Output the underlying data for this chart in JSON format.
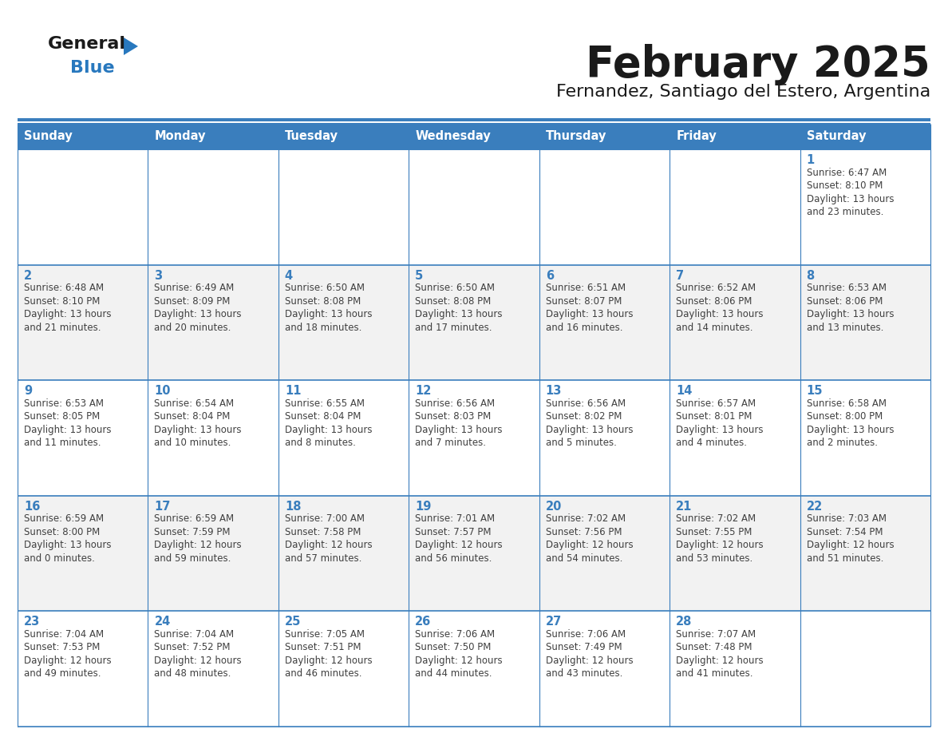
{
  "title": "February 2025",
  "subtitle": "Fernandez, Santiago del Estero, Argentina",
  "days_of_week": [
    "Sunday",
    "Monday",
    "Tuesday",
    "Wednesday",
    "Thursday",
    "Friday",
    "Saturday"
  ],
  "header_bg": "#3A7EBD",
  "header_text": "#FFFFFF",
  "cell_bg_light": "#F2F2F2",
  "cell_bg_white": "#FFFFFF",
  "border_color": "#3A7EBD",
  "day_number_color": "#3A7EBD",
  "text_color": "#404040",
  "title_color": "#1a1a1a",
  "logo_general_color": "#1a1a1a",
  "logo_blue_color": "#2878BE",
  "separator_color": "#3A7EBD",
  "calendar_data": [
    {
      "day": 1,
      "week": 0,
      "dow": 6,
      "sunrise": "6:47 AM",
      "sunset": "8:10 PM",
      "daylight_hours": 13,
      "daylight_minutes": 23
    },
    {
      "day": 2,
      "week": 1,
      "dow": 0,
      "sunrise": "6:48 AM",
      "sunset": "8:10 PM",
      "daylight_hours": 13,
      "daylight_minutes": 21
    },
    {
      "day": 3,
      "week": 1,
      "dow": 1,
      "sunrise": "6:49 AM",
      "sunset": "8:09 PM",
      "daylight_hours": 13,
      "daylight_minutes": 20
    },
    {
      "day": 4,
      "week": 1,
      "dow": 2,
      "sunrise": "6:50 AM",
      "sunset": "8:08 PM",
      "daylight_hours": 13,
      "daylight_minutes": 18
    },
    {
      "day": 5,
      "week": 1,
      "dow": 3,
      "sunrise": "6:50 AM",
      "sunset": "8:08 PM",
      "daylight_hours": 13,
      "daylight_minutes": 17
    },
    {
      "day": 6,
      "week": 1,
      "dow": 4,
      "sunrise": "6:51 AM",
      "sunset": "8:07 PM",
      "daylight_hours": 13,
      "daylight_minutes": 16
    },
    {
      "day": 7,
      "week": 1,
      "dow": 5,
      "sunrise": "6:52 AM",
      "sunset": "8:06 PM",
      "daylight_hours": 13,
      "daylight_minutes": 14
    },
    {
      "day": 8,
      "week": 1,
      "dow": 6,
      "sunrise": "6:53 AM",
      "sunset": "8:06 PM",
      "daylight_hours": 13,
      "daylight_minutes": 13
    },
    {
      "day": 9,
      "week": 2,
      "dow": 0,
      "sunrise": "6:53 AM",
      "sunset": "8:05 PM",
      "daylight_hours": 13,
      "daylight_minutes": 11
    },
    {
      "day": 10,
      "week": 2,
      "dow": 1,
      "sunrise": "6:54 AM",
      "sunset": "8:04 PM",
      "daylight_hours": 13,
      "daylight_minutes": 10
    },
    {
      "day": 11,
      "week": 2,
      "dow": 2,
      "sunrise": "6:55 AM",
      "sunset": "8:04 PM",
      "daylight_hours": 13,
      "daylight_minutes": 8
    },
    {
      "day": 12,
      "week": 2,
      "dow": 3,
      "sunrise": "6:56 AM",
      "sunset": "8:03 PM",
      "daylight_hours": 13,
      "daylight_minutes": 7
    },
    {
      "day": 13,
      "week": 2,
      "dow": 4,
      "sunrise": "6:56 AM",
      "sunset": "8:02 PM",
      "daylight_hours": 13,
      "daylight_minutes": 5
    },
    {
      "day": 14,
      "week": 2,
      "dow": 5,
      "sunrise": "6:57 AM",
      "sunset": "8:01 PM",
      "daylight_hours": 13,
      "daylight_minutes": 4
    },
    {
      "day": 15,
      "week": 2,
      "dow": 6,
      "sunrise": "6:58 AM",
      "sunset": "8:00 PM",
      "daylight_hours": 13,
      "daylight_minutes": 2
    },
    {
      "day": 16,
      "week": 3,
      "dow": 0,
      "sunrise": "6:59 AM",
      "sunset": "8:00 PM",
      "daylight_hours": 13,
      "daylight_minutes": 0
    },
    {
      "day": 17,
      "week": 3,
      "dow": 1,
      "sunrise": "6:59 AM",
      "sunset": "7:59 PM",
      "daylight_hours": 12,
      "daylight_minutes": 59
    },
    {
      "day": 18,
      "week": 3,
      "dow": 2,
      "sunrise": "7:00 AM",
      "sunset": "7:58 PM",
      "daylight_hours": 12,
      "daylight_minutes": 57
    },
    {
      "day": 19,
      "week": 3,
      "dow": 3,
      "sunrise": "7:01 AM",
      "sunset": "7:57 PM",
      "daylight_hours": 12,
      "daylight_minutes": 56
    },
    {
      "day": 20,
      "week": 3,
      "dow": 4,
      "sunrise": "7:02 AM",
      "sunset": "7:56 PM",
      "daylight_hours": 12,
      "daylight_minutes": 54
    },
    {
      "day": 21,
      "week": 3,
      "dow": 5,
      "sunrise": "7:02 AM",
      "sunset": "7:55 PM",
      "daylight_hours": 12,
      "daylight_minutes": 53
    },
    {
      "day": 22,
      "week": 3,
      "dow": 6,
      "sunrise": "7:03 AM",
      "sunset": "7:54 PM",
      "daylight_hours": 12,
      "daylight_minutes": 51
    },
    {
      "day": 23,
      "week": 4,
      "dow": 0,
      "sunrise": "7:04 AM",
      "sunset": "7:53 PM",
      "daylight_hours": 12,
      "daylight_minutes": 49
    },
    {
      "day": 24,
      "week": 4,
      "dow": 1,
      "sunrise": "7:04 AM",
      "sunset": "7:52 PM",
      "daylight_hours": 12,
      "daylight_minutes": 48
    },
    {
      "day": 25,
      "week": 4,
      "dow": 2,
      "sunrise": "7:05 AM",
      "sunset": "7:51 PM",
      "daylight_hours": 12,
      "daylight_minutes": 46
    },
    {
      "day": 26,
      "week": 4,
      "dow": 3,
      "sunrise": "7:06 AM",
      "sunset": "7:50 PM",
      "daylight_hours": 12,
      "daylight_minutes": 44
    },
    {
      "day": 27,
      "week": 4,
      "dow": 4,
      "sunrise": "7:06 AM",
      "sunset": "7:49 PM",
      "daylight_hours": 12,
      "daylight_minutes": 43
    },
    {
      "day": 28,
      "week": 4,
      "dow": 5,
      "sunrise": "7:07 AM",
      "sunset": "7:48 PM",
      "daylight_hours": 12,
      "daylight_minutes": 41
    }
  ]
}
